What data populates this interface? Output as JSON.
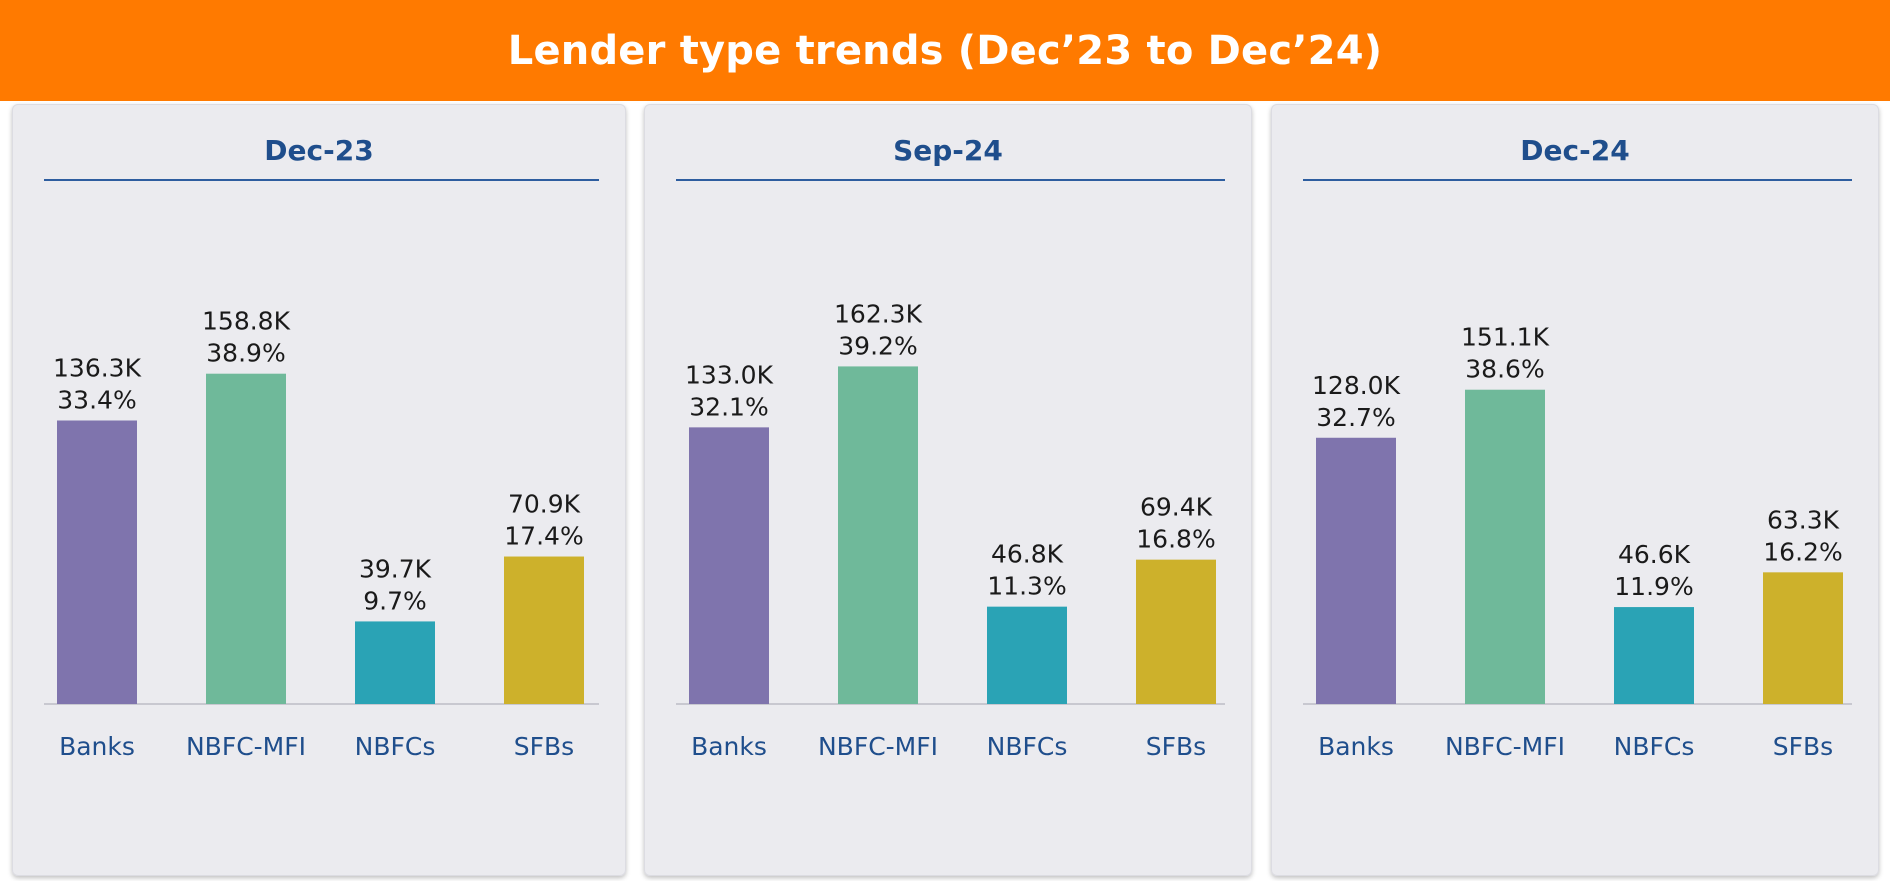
{
  "header": {
    "title": "Lender type trends (Dec’23 to Dec’24)"
  },
  "colors": {
    "banner": "#ff7a00",
    "panel_title": "#1f4e8c",
    "category_label": "#1f4e8c",
    "value_label": "#1a1a1a",
    "Banks": "#7f74ad",
    "NBFC-MFI": "#6fb99a",
    "NBFCs": "#2aa3b5",
    "SFBs": "#cdb12b"
  },
  "chart_data": [
    {
      "type": "bar",
      "title": "Dec-23",
      "categories": [
        "Banks",
        "NBFC-MFI",
        "NBFCs",
        "SFBs"
      ],
      "values": [
        136.3,
        158.8,
        39.7,
        70.9
      ],
      "value_labels": [
        "136.3K",
        "158.8K",
        "39.7K",
        "70.9K"
      ],
      "shares": [
        "33.4%",
        "38.9%",
        "9.7%",
        "17.4%"
      ],
      "ylim": [
        0,
        200
      ],
      "grid": false,
      "legend": "none"
    },
    {
      "type": "bar",
      "title": "Sep-24",
      "categories": [
        "Banks",
        "NBFC-MFI",
        "NBFCs",
        "SFBs"
      ],
      "values": [
        133.0,
        162.3,
        46.8,
        69.4
      ],
      "value_labels": [
        "133.0K",
        "162.3K",
        "46.8K",
        "69.4K"
      ],
      "shares": [
        "32.1%",
        "39.2%",
        "11.3%",
        "16.8%"
      ],
      "ylim": [
        0,
        200
      ],
      "grid": false,
      "legend": "none"
    },
    {
      "type": "bar",
      "title": "Dec-24",
      "categories": [
        "Banks",
        "NBFC-MFI",
        "NBFCs",
        "SFBs"
      ],
      "values": [
        128.0,
        151.1,
        46.6,
        63.3
      ],
      "value_labels": [
        "128.0K",
        "151.1K",
        "46.6K",
        "63.3K"
      ],
      "shares": [
        "32.7%",
        "38.6%",
        "11.9%",
        "16.2%"
      ],
      "ylim": [
        0,
        200
      ],
      "grid": false,
      "legend": "none"
    }
  ]
}
